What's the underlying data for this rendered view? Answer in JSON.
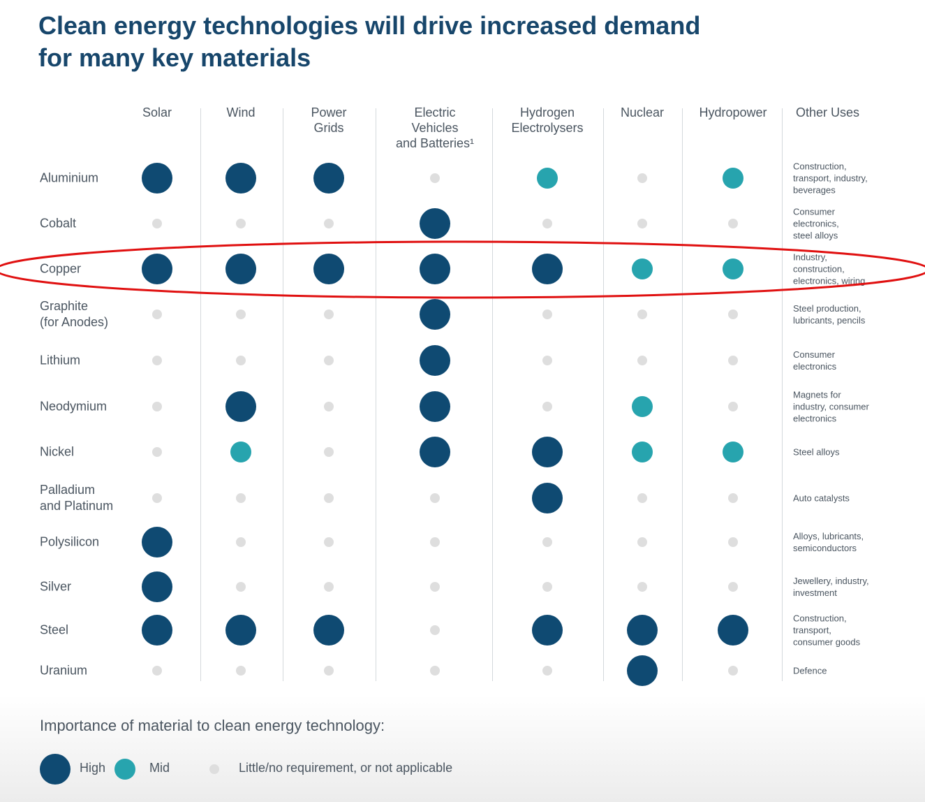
{
  "title": "Clean energy technologies will drive increased demand\nfor many key materials",
  "columns": [
    "Solar",
    "Wind",
    "Power\nGrids",
    "Electric\nVehicles\nand Batteries¹",
    "Hydrogen\nElectrolysers",
    "Nuclear",
    "Hydropower",
    "Other Uses"
  ],
  "rows": [
    {
      "material": "Aluminium",
      "levels": [
        0,
        0,
        0,
        2,
        1,
        2,
        1
      ],
      "other_uses": "Construction,\ntransport, industry,\nbeverages"
    },
    {
      "material": "Cobalt",
      "levels": [
        2,
        2,
        2,
        0,
        2,
        2,
        2
      ],
      "other_uses": "Consumer\nelectronics,\nsteel alloys"
    },
    {
      "material": "Copper",
      "levels": [
        0,
        0,
        0,
        0,
        0,
        1,
        1
      ],
      "other_uses": "Industry,\nconstruction,\nelectronics, wiring"
    },
    {
      "material": "Graphite\n(for Anodes)",
      "levels": [
        2,
        2,
        2,
        0,
        2,
        2,
        2
      ],
      "other_uses": "Steel production,\nlubricants, pencils"
    },
    {
      "material": "Lithium",
      "levels": [
        2,
        2,
        2,
        0,
        2,
        2,
        2
      ],
      "other_uses": "Consumer\nelectronics"
    },
    {
      "material": "Neodymium",
      "levels": [
        2,
        0,
        2,
        0,
        2,
        1,
        2
      ],
      "other_uses": "Magnets for\nindustry, consumer\nelectronics"
    },
    {
      "material": "Nickel",
      "levels": [
        2,
        1,
        2,
        0,
        0,
        1,
        1
      ],
      "other_uses": "Steel alloys"
    },
    {
      "material": "Palladium\nand Platinum",
      "levels": [
        2,
        2,
        2,
        2,
        0,
        2,
        2
      ],
      "other_uses": "Auto catalysts"
    },
    {
      "material": "Polysilicon",
      "levels": [
        0,
        2,
        2,
        2,
        2,
        2,
        2
      ],
      "other_uses": "Alloys, lubricants,\nsemiconductors"
    },
    {
      "material": "Silver",
      "levels": [
        0,
        2,
        2,
        2,
        2,
        2,
        2
      ],
      "other_uses": "Jewellery, industry,\ninvestment"
    },
    {
      "material": "Steel",
      "levels": [
        0,
        0,
        0,
        2,
        0,
        0,
        0
      ],
      "other_uses": "Construction,\ntransport,\nconsumer goods"
    },
    {
      "material": "Uranium",
      "levels": [
        2,
        2,
        2,
        2,
        2,
        0,
        2
      ],
      "other_uses": "Defence"
    }
  ],
  "legend": {
    "title": "Importance of material to clean energy technology:",
    "items": [
      {
        "label": "High",
        "color": "#0f4a72"
      },
      {
        "label": "Mid",
        "color": "#27a4ae"
      },
      {
        "label": "Little/no requirement, or not applicable",
        "color": "#dedede"
      }
    ]
  }
}
